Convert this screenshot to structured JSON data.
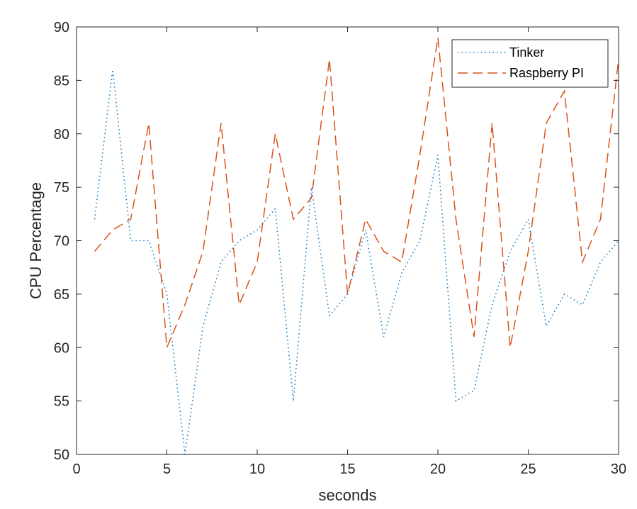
{
  "chart_data": {
    "type": "line",
    "title": "",
    "xlabel": "seconds",
    "ylabel": "CPU Percentage",
    "xlim": [
      0,
      30
    ],
    "ylim": [
      50,
      90
    ],
    "xticks": [
      0,
      5,
      10,
      15,
      20,
      25,
      30
    ],
    "yticks": [
      50,
      55,
      60,
      65,
      70,
      75,
      80,
      85,
      90
    ],
    "grid": false,
    "legend_position": "top-right",
    "x": [
      1,
      2,
      3,
      4,
      5,
      6,
      7,
      8,
      9,
      10,
      11,
      12,
      13,
      14,
      15,
      16,
      17,
      18,
      19,
      20,
      21,
      22,
      23,
      24,
      25,
      26,
      27,
      28,
      29,
      30
    ],
    "series": [
      {
        "name": "Tinker",
        "color": "#0072BD",
        "dash": "dotted",
        "values": [
          72,
          86,
          70,
          70,
          65,
          50,
          62,
          68,
          70,
          71,
          73,
          55,
          75,
          63,
          65,
          71,
          61,
          67,
          70,
          78,
          55,
          56,
          64,
          69,
          72,
          62,
          65,
          64,
          68,
          70
        ]
      },
      {
        "name": "Raspberry PI",
        "color": "#D95319",
        "dash": "dashed",
        "values": [
          69,
          71,
          72,
          81,
          60,
          64,
          69,
          81,
          64,
          68,
          80,
          72,
          74,
          87,
          65,
          72,
          69,
          68,
          78,
          89,
          72,
          61,
          81,
          60,
          69,
          81,
          84,
          68,
          72,
          87
        ]
      }
    ]
  }
}
